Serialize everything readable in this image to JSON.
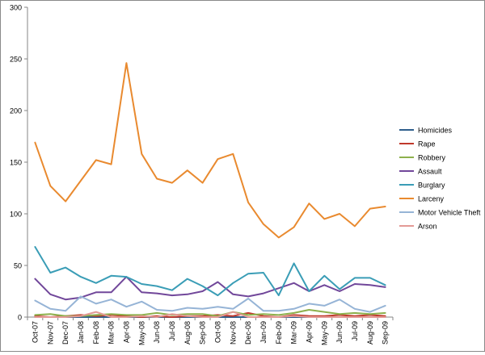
{
  "chart_data": {
    "type": "line",
    "title": "",
    "xlabel": "",
    "ylabel": "",
    "ylim": [
      0,
      300
    ],
    "yticks": [
      0,
      50,
      100,
      150,
      200,
      250,
      300
    ],
    "grid": false,
    "legend_position": "right",
    "categories": [
      "Oct-07",
      "Nov-07",
      "Dec-07",
      "Jan-08",
      "Feb-08",
      "Mar-08",
      "Apr-08",
      "May-08",
      "Jun-08",
      "Jul-08",
      "Aug-08",
      "Sep-08",
      "Oct-08",
      "Nov-08",
      "Dec-08",
      "Jan-09",
      "Feb-09",
      "Mar-09",
      "Apr-09",
      "May-09",
      "Jun-09",
      "Jul-09",
      "Aug-09",
      "Sep-09"
    ],
    "series": [
      {
        "name": "Homicides",
        "color": "#2E5E8C",
        "values": [
          0,
          0,
          0,
          0,
          0,
          0,
          0,
          0,
          0,
          0,
          0,
          0,
          0,
          0,
          0,
          0,
          0,
          0,
          0,
          0,
          0,
          0,
          0,
          0
        ]
      },
      {
        "name": "Rape",
        "color": "#C0392B",
        "values": [
          1,
          0,
          1,
          2,
          1,
          2,
          1,
          0,
          1,
          0,
          1,
          1,
          2,
          1,
          4,
          1,
          0,
          2,
          1,
          1,
          2,
          1,
          2,
          1
        ]
      },
      {
        "name": "Robbery",
        "color": "#8DB04C",
        "values": [
          2,
          3,
          1,
          1,
          2,
          3,
          2,
          2,
          4,
          2,
          3,
          3,
          1,
          5,
          2,
          3,
          2,
          4,
          7,
          5,
          3,
          4,
          3,
          4
        ]
      },
      {
        "name": "Assault",
        "color": "#71479A",
        "values": [
          37,
          22,
          17,
          19,
          24,
          24,
          39,
          24,
          23,
          21,
          22,
          25,
          34,
          22,
          20,
          23,
          28,
          33,
          25,
          31,
          25,
          32,
          31,
          29
        ]
      },
      {
        "name": "Burglary",
        "color": "#3A9DB6",
        "values": [
          68,
          43,
          48,
          39,
          33,
          40,
          39,
          32,
          30,
          26,
          37,
          30,
          21,
          33,
          42,
          43,
          21,
          52,
          25,
          40,
          27,
          38,
          38,
          31
        ]
      },
      {
        "name": "Larceny",
        "color": "#E98A2F",
        "values": [
          169,
          127,
          112,
          132,
          152,
          148,
          246,
          158,
          134,
          130,
          142,
          130,
          153,
          158,
          111,
          90,
          77,
          87,
          110,
          95,
          100,
          88,
          105,
          107
        ]
      },
      {
        "name": "Motor Vehicle Theft",
        "color": "#96B4D6",
        "values": [
          16,
          8,
          6,
          20,
          13,
          17,
          10,
          15,
          7,
          6,
          9,
          8,
          10,
          8,
          18,
          6,
          6,
          8,
          13,
          11,
          17,
          8,
          5,
          11
        ]
      },
      {
        "name": "Arson",
        "color": "#E39A96",
        "values": [
          0,
          0,
          0,
          1,
          5,
          0,
          0,
          1,
          0,
          3,
          1,
          0,
          0,
          5,
          0,
          0,
          0,
          1,
          0,
          0,
          0,
          0,
          0,
          0
        ]
      }
    ]
  }
}
